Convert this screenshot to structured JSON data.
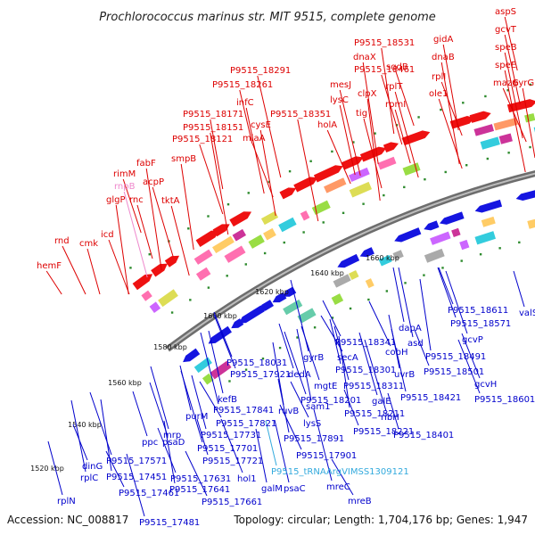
{
  "title": "Prochlorococcus marinus str. MIT 9515, complete genome",
  "footer": {
    "accession": "Accession: NC_008817",
    "stats": "Topology: circular; Length: 1,704,176 bp; Genes: 1,947"
  },
  "colors": {
    "forward_label": "#dd0000",
    "reverse_label": "#0000cc",
    "rna_label": "#33aadd",
    "pseudo_label": "#ee88cc",
    "backbone": "#8a8a8a"
  },
  "ticks": [
    {
      "label": "1520 kbp"
    },
    {
      "label": "1540 kbp"
    },
    {
      "label": "1560 kbp"
    },
    {
      "label": "1580 kbp"
    },
    {
      "label": "1600 kbp"
    },
    {
      "label": "1620 kbp"
    },
    {
      "label": "1640 kbp"
    },
    {
      "label": "1660 kbp"
    }
  ],
  "forward_genes": [
    {
      "name": "aspS",
      "color": "forward"
    },
    {
      "name": "gcvT",
      "color": "forward"
    },
    {
      "name": "speB",
      "color": "forward"
    },
    {
      "name": "speE",
      "color": "forward"
    },
    {
      "name": "mazG",
      "color": "forward"
    },
    {
      "name": "pyrG",
      "color": "forward"
    },
    {
      "name": "gidA",
      "color": "forward"
    },
    {
      "name": "dnaB",
      "color": "forward"
    },
    {
      "name": "rplI",
      "color": "forward"
    },
    {
      "name": "ole1",
      "color": "forward"
    },
    {
      "name": "P9515_18531",
      "color": "forward"
    },
    {
      "name": "dnaX",
      "color": "forward"
    },
    {
      "name": "sqdB",
      "color": "forward"
    },
    {
      "name": "P9515_18461",
      "color": "forward"
    },
    {
      "name": "rplT",
      "color": "forward"
    },
    {
      "name": "clpX",
      "color": "forward"
    },
    {
      "name": "rpmI",
      "color": "forward"
    },
    {
      "name": "tig",
      "color": "forward"
    },
    {
      "name": "mesJ",
      "color": "forward"
    },
    {
      "name": "P9515_18291",
      "color": "forward"
    },
    {
      "name": "P9515_18261",
      "color": "forward"
    },
    {
      "name": "lysC",
      "color": "forward"
    },
    {
      "name": "infC",
      "color": "forward"
    },
    {
      "name": "P9515_18351",
      "color": "forward"
    },
    {
      "name": "holA",
      "color": "forward"
    },
    {
      "name": "P9515_18171",
      "color": "forward"
    },
    {
      "name": "cysE",
      "color": "forward"
    },
    {
      "name": "P9515_18151",
      "color": "forward"
    },
    {
      "name": "miaA",
      "color": "forward"
    },
    {
      "name": "P9515_18121",
      "color": "forward"
    },
    {
      "name": "smpB",
      "color": "forward"
    },
    {
      "name": "fabF",
      "color": "forward"
    },
    {
      "name": "rimM",
      "color": "forward"
    },
    {
      "name": "acpP",
      "color": "forward"
    },
    {
      "name": "rnpB",
      "color": "pseudo"
    },
    {
      "name": "glgP",
      "color": "forward"
    },
    {
      "name": "rnc",
      "color": "forward"
    },
    {
      "name": "tktA",
      "color": "forward"
    },
    {
      "name": "icd",
      "color": "forward"
    },
    {
      "name": "rnd",
      "color": "forward"
    },
    {
      "name": "cmk",
      "color": "forward"
    },
    {
      "name": "hemF",
      "color": "forward"
    }
  ],
  "reverse_genes": [
    {
      "name": "valS",
      "color": "reverse"
    },
    {
      "name": "P9515_18611",
      "color": "reverse"
    },
    {
      "name": "P9515_18571",
      "color": "reverse"
    },
    {
      "name": "gcvP",
      "color": "reverse"
    },
    {
      "name": "P9515_18491",
      "color": "reverse"
    },
    {
      "name": "P9515_18501",
      "color": "reverse"
    },
    {
      "name": "gcvH",
      "color": "reverse"
    },
    {
      "name": "P9515_18601",
      "color": "reverse"
    },
    {
      "name": "dapA",
      "color": "reverse"
    },
    {
      "name": "asd",
      "color": "reverse"
    },
    {
      "name": "P9515_18341",
      "color": "reverse"
    },
    {
      "name": "cobH",
      "color": "reverse"
    },
    {
      "name": "uvrB",
      "color": "reverse"
    },
    {
      "name": "P9515_18421",
      "color": "reverse"
    },
    {
      "name": "gyrB",
      "color": "reverse"
    },
    {
      "name": "secA",
      "color": "reverse"
    },
    {
      "name": "P9515_18301",
      "color": "reverse"
    },
    {
      "name": "P9515_18311",
      "color": "reverse"
    },
    {
      "name": "galE",
      "color": "reverse"
    },
    {
      "name": "ribH",
      "color": "reverse"
    },
    {
      "name": "P9515_18401",
      "color": "reverse"
    },
    {
      "name": "dedA",
      "color": "reverse"
    },
    {
      "name": "mgtE",
      "color": "reverse"
    },
    {
      "name": "P9515_18201",
      "color": "reverse"
    },
    {
      "name": "P9515_18211",
      "color": "reverse"
    },
    {
      "name": "P9515_18221",
      "color": "reverse"
    },
    {
      "name": "P9515_18031",
      "color": "reverse"
    },
    {
      "name": "P9515_17921",
      "color": "reverse"
    },
    {
      "name": "ruvB",
      "color": "reverse"
    },
    {
      "name": "sam1",
      "color": "reverse"
    },
    {
      "name": "lysS",
      "color": "reverse"
    },
    {
      "name": "P9515_17901",
      "color": "reverse"
    },
    {
      "name": "P9515_17891",
      "color": "reverse"
    },
    {
      "name": "kefB",
      "color": "reverse"
    },
    {
      "name": "P9515_17841",
      "color": "reverse"
    },
    {
      "name": "P9515_17821",
      "color": "reverse"
    },
    {
      "name": "purM",
      "color": "reverse"
    },
    {
      "name": "P9515_17731",
      "color": "reverse"
    },
    {
      "name": "mrp",
      "color": "reverse"
    },
    {
      "name": "P9515_17701",
      "color": "reverse"
    },
    {
      "name": "P9515_17721",
      "color": "reverse"
    },
    {
      "name": "ppc",
      "color": "reverse"
    },
    {
      "name": "psaD",
      "color": "reverse"
    },
    {
      "name": "P9515_17571",
      "color": "reverse"
    },
    {
      "name": "P9515_17451",
      "color": "reverse"
    },
    {
      "name": "dinG",
      "color": "reverse"
    },
    {
      "name": "P9515_17631",
      "color": "reverse"
    },
    {
      "name": "hol1",
      "color": "reverse"
    },
    {
      "name": "P9515_17641",
      "color": "reverse"
    },
    {
      "name": "rplC",
      "color": "reverse"
    },
    {
      "name": "P9515_17461",
      "color": "reverse"
    },
    {
      "name": "P9515_17661",
      "color": "reverse"
    },
    {
      "name": "galM",
      "color": "reverse"
    },
    {
      "name": "psaC",
      "color": "reverse"
    },
    {
      "name": "mreC",
      "color": "reverse"
    },
    {
      "name": "mreB",
      "color": "reverse"
    },
    {
      "name": "P9515_tRNAArgVIMSS1309121",
      "color": "rna"
    },
    {
      "name": "rplN",
      "color": "reverse"
    },
    {
      "name": "P9515_17481",
      "color": "reverse"
    }
  ]
}
